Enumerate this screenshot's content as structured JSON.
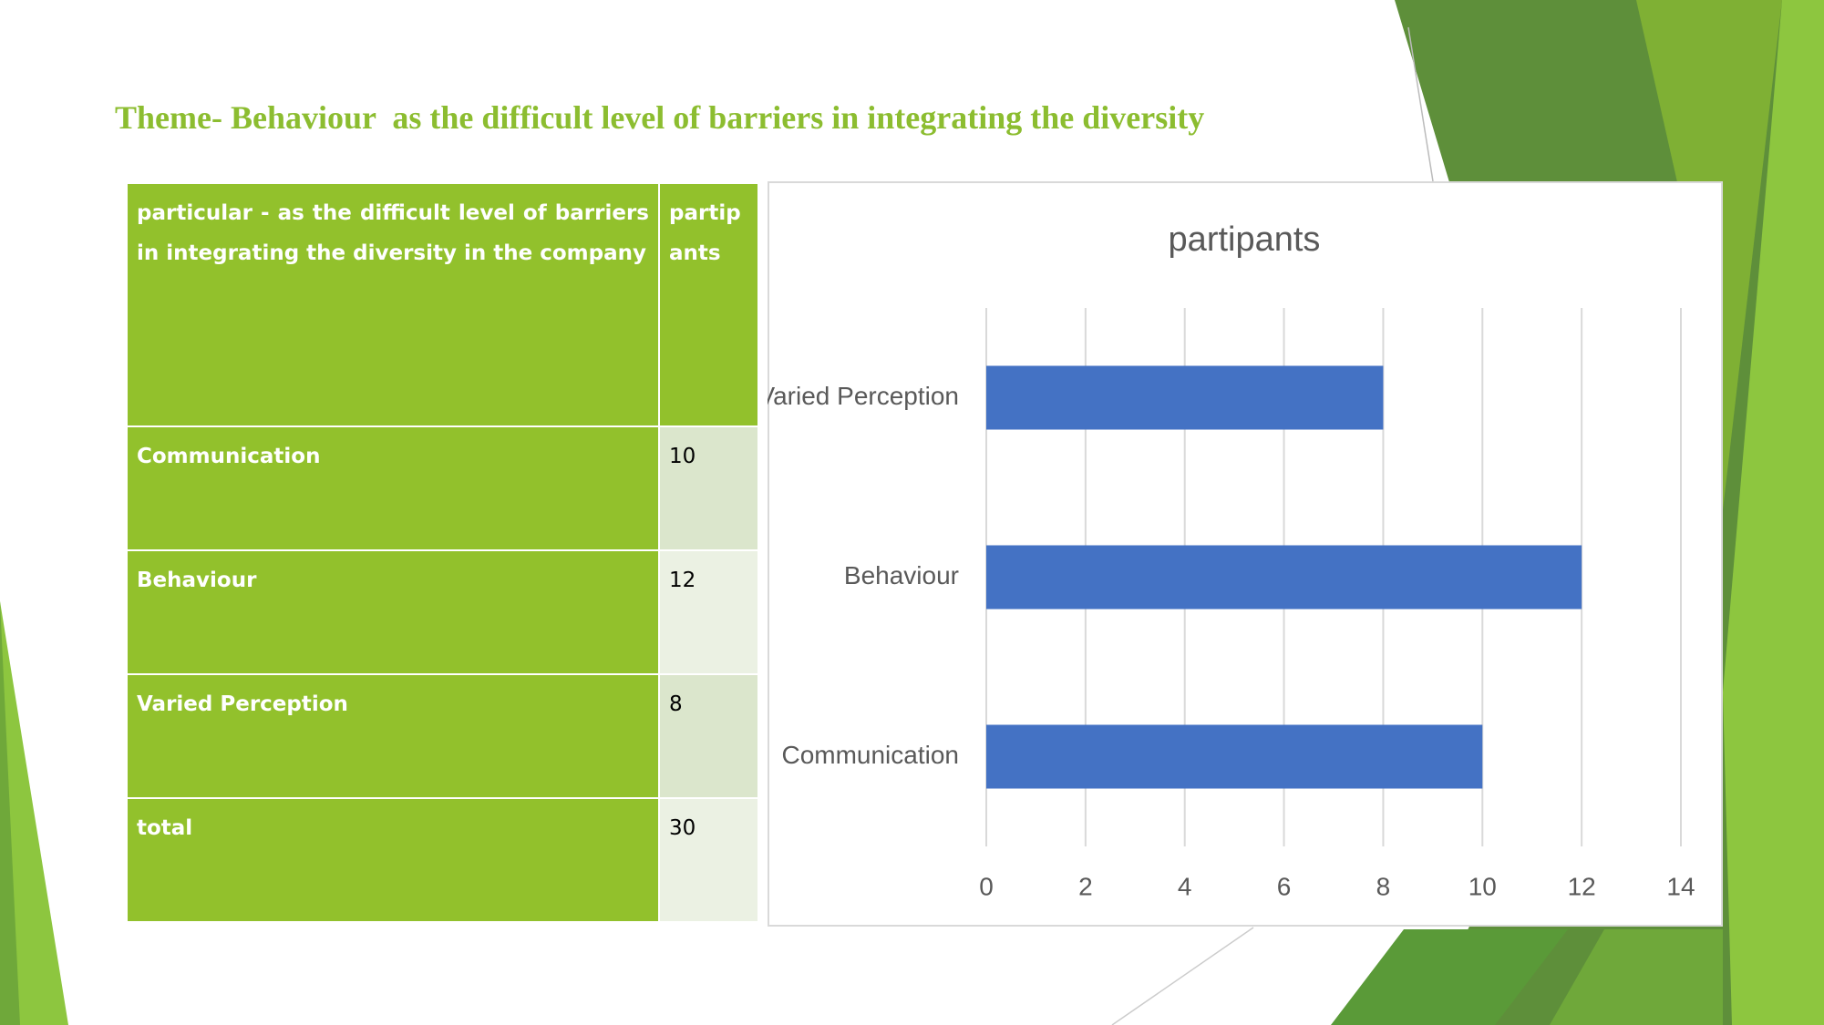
{
  "title": "Theme- Behaviour  as the difficult level of barriers in integrating the diversity",
  "table": {
    "header": [
      "particular - as the difficult level of barriers in integrating the diversity in the company",
      "partipants"
    ],
    "rows": [
      [
        "Communication",
        10
      ],
      [
        "Behaviour",
        12
      ],
      [
        "Varied Perception",
        8
      ],
      [
        "total",
        30
      ]
    ]
  },
  "chart_data": {
    "type": "barh",
    "title": "partipants",
    "categories": [
      "Varied Perception",
      "Behaviour",
      "Communication"
    ],
    "values": [
      8,
      12,
      10
    ],
    "color": "#4472c4",
    "xlim": [
      0,
      14
    ],
    "xticks": [
      0,
      2,
      4,
      6,
      8,
      10,
      12,
      14
    ],
    "grid": true
  }
}
